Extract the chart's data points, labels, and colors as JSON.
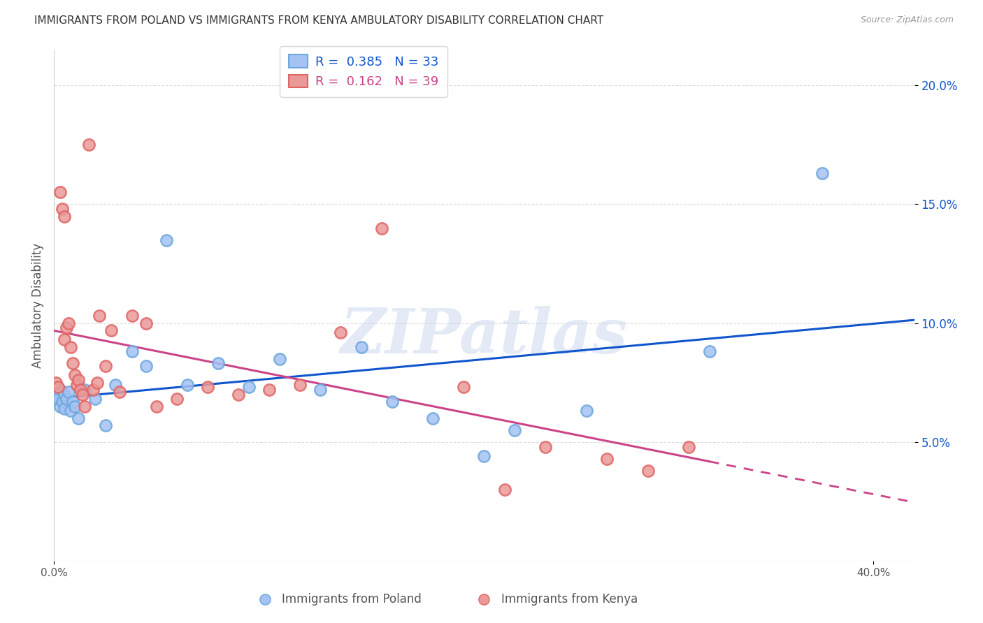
{
  "title": "IMMIGRANTS FROM POLAND VS IMMIGRANTS FROM KENYA AMBULATORY DISABILITY CORRELATION CHART",
  "source": "Source: ZipAtlas.com",
  "ylabel": "Ambulatory Disability",
  "xlim": [
    0.0,
    0.42
  ],
  "ylim": [
    0.0,
    0.215
  ],
  "ytick_vals": [
    0.05,
    0.1,
    0.15,
    0.2
  ],
  "ytick_labels": [
    "5.0%",
    "10.0%",
    "15.0%",
    "20.0%"
  ],
  "poland_color": "#a4c2f4",
  "poland_edge_color": "#6fa8dc",
  "kenya_color": "#ea9999",
  "kenya_edge_color": "#e06666",
  "poland_R": "0.385",
  "poland_N": "33",
  "kenya_R": "0.162",
  "kenya_N": "39",
  "poland_line_color": "#1155cc",
  "kenya_line_color": "#cc4488",
  "poland_scatter_x": [
    0.001,
    0.002,
    0.003,
    0.003,
    0.004,
    0.005,
    0.005,
    0.006,
    0.007,
    0.008,
    0.009,
    0.01,
    0.012,
    0.015,
    0.02,
    0.025,
    0.03,
    0.038,
    0.045,
    0.055,
    0.065,
    0.08,
    0.095,
    0.11,
    0.13,
    0.15,
    0.165,
    0.185,
    0.21,
    0.225,
    0.26,
    0.32,
    0.375
  ],
  "poland_scatter_y": [
    0.07,
    0.068,
    0.065,
    0.072,
    0.067,
    0.07,
    0.064,
    0.068,
    0.071,
    0.063,
    0.067,
    0.065,
    0.06,
    0.072,
    0.068,
    0.057,
    0.074,
    0.088,
    0.082,
    0.135,
    0.074,
    0.083,
    0.073,
    0.085,
    0.072,
    0.09,
    0.067,
    0.06,
    0.044,
    0.055,
    0.063,
    0.088,
    0.163
  ],
  "kenya_scatter_x": [
    0.001,
    0.002,
    0.003,
    0.004,
    0.005,
    0.005,
    0.006,
    0.007,
    0.008,
    0.009,
    0.01,
    0.011,
    0.012,
    0.013,
    0.014,
    0.015,
    0.017,
    0.019,
    0.021,
    0.022,
    0.025,
    0.028,
    0.032,
    0.038,
    0.045,
    0.05,
    0.06,
    0.075,
    0.09,
    0.105,
    0.12,
    0.14,
    0.16,
    0.2,
    0.22,
    0.24,
    0.27,
    0.29,
    0.31
  ],
  "kenya_scatter_y": [
    0.075,
    0.073,
    0.155,
    0.148,
    0.145,
    0.093,
    0.098,
    0.1,
    0.09,
    0.083,
    0.078,
    0.074,
    0.076,
    0.072,
    0.07,
    0.065,
    0.175,
    0.072,
    0.075,
    0.103,
    0.082,
    0.097,
    0.071,
    0.103,
    0.1,
    0.065,
    0.068,
    0.073,
    0.07,
    0.072,
    0.074,
    0.096,
    0.14,
    0.073,
    0.03,
    0.048,
    0.043,
    0.038,
    0.048
  ],
  "watermark_text": "ZIPatlas",
  "background_color": "#ffffff",
  "grid_color": "#dddddd",
  "title_color": "#333333",
  "source_color": "#999999",
  "ylabel_color": "#555555"
}
